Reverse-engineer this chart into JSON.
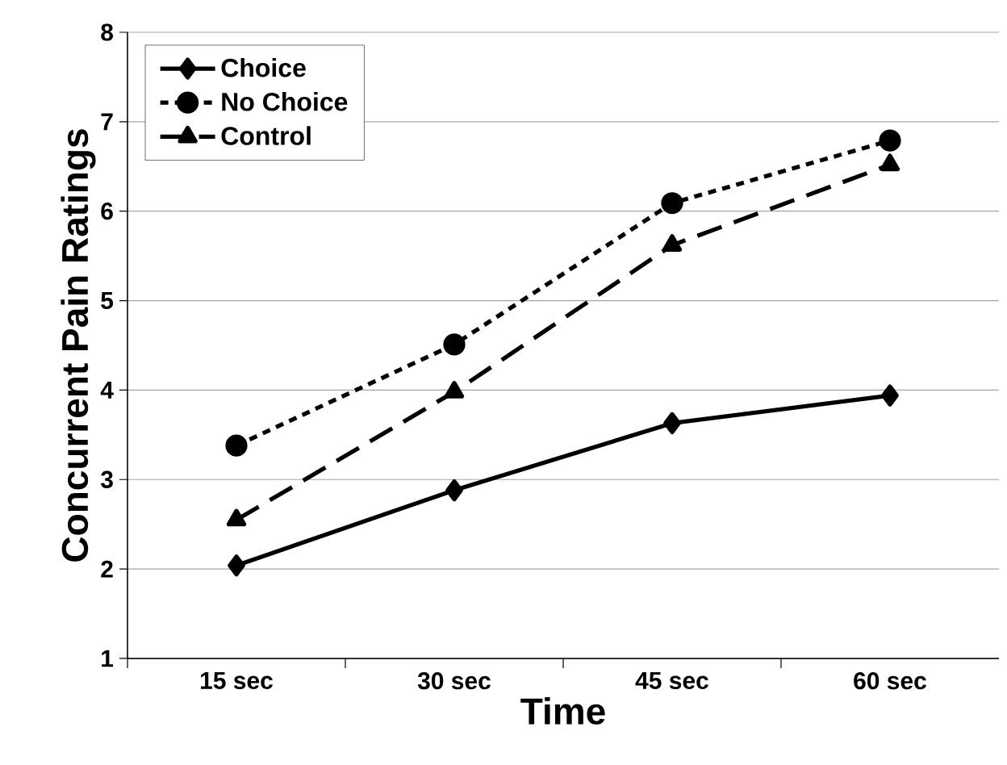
{
  "chart_data": {
    "type": "line",
    "xlabel": "Time",
    "ylabel": "Concurrent Pain Ratings",
    "categories": [
      "15 sec",
      "30 sec",
      "45 sec",
      "60 sec"
    ],
    "series": [
      {
        "name": "Choice",
        "color": "#000000",
        "marker": "diamond",
        "line_style": "solid",
        "values": [
          2.04,
          2.88,
          3.63,
          3.94
        ]
      },
      {
        "name": "No Choice",
        "color": "#000000",
        "marker": "circle",
        "line_style": "dashed",
        "values": [
          3.38,
          4.51,
          6.09,
          6.79
        ]
      },
      {
        "name": "Control",
        "color": "#000000",
        "marker": "triangle",
        "line_style": "dashed",
        "values": [
          2.55,
          3.98,
          5.62,
          6.52
        ]
      }
    ],
    "ylim": [
      1,
      8
    ],
    "yticks": [
      1,
      2,
      3,
      4,
      5,
      6,
      7,
      8
    ],
    "grid": "y",
    "legend": "top left"
  }
}
